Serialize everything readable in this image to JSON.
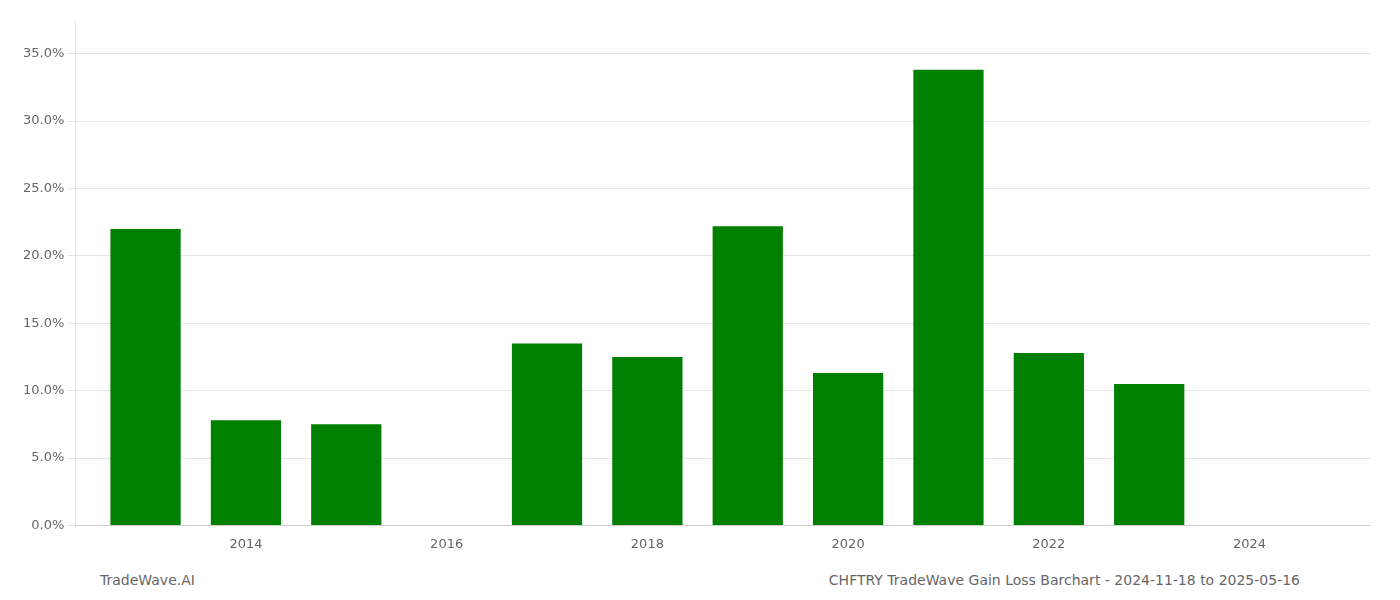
{
  "chart_data": {
    "type": "bar",
    "x": [
      2013,
      2014,
      2015,
      2017,
      2018,
      2019,
      2020,
      2021,
      2022,
      2023
    ],
    "values": [
      0.22,
      0.078,
      0.075,
      0.135,
      0.125,
      0.222,
      0.113,
      0.338,
      0.128,
      0.105
    ],
    "color": "#008000",
    "xlim": [
      2012.3,
      2025.2
    ],
    "xticks": [
      2014,
      2016,
      2018,
      2020,
      2022,
      2024
    ],
    "ylim": [
      0,
      0.375
    ],
    "yticks": [
      {
        "value": 0.0,
        "label": "0.0%"
      },
      {
        "value": 0.05,
        "label": "5.0%"
      },
      {
        "value": 0.1,
        "label": "10.0%"
      },
      {
        "value": 0.15,
        "label": "15.0%"
      },
      {
        "value": 0.2,
        "label": "20.0%"
      },
      {
        "value": 0.25,
        "label": "25.0%"
      },
      {
        "value": 0.3,
        "label": "30.0%"
      },
      {
        "value": 0.35,
        "label": "35.0%"
      }
    ],
    "grid": true,
    "annotations": [
      "TradeWave.AI",
      "CHFTRY TradeWave Gain Loss Barchart - 2024-11-18 to 2025-05-16"
    ]
  }
}
